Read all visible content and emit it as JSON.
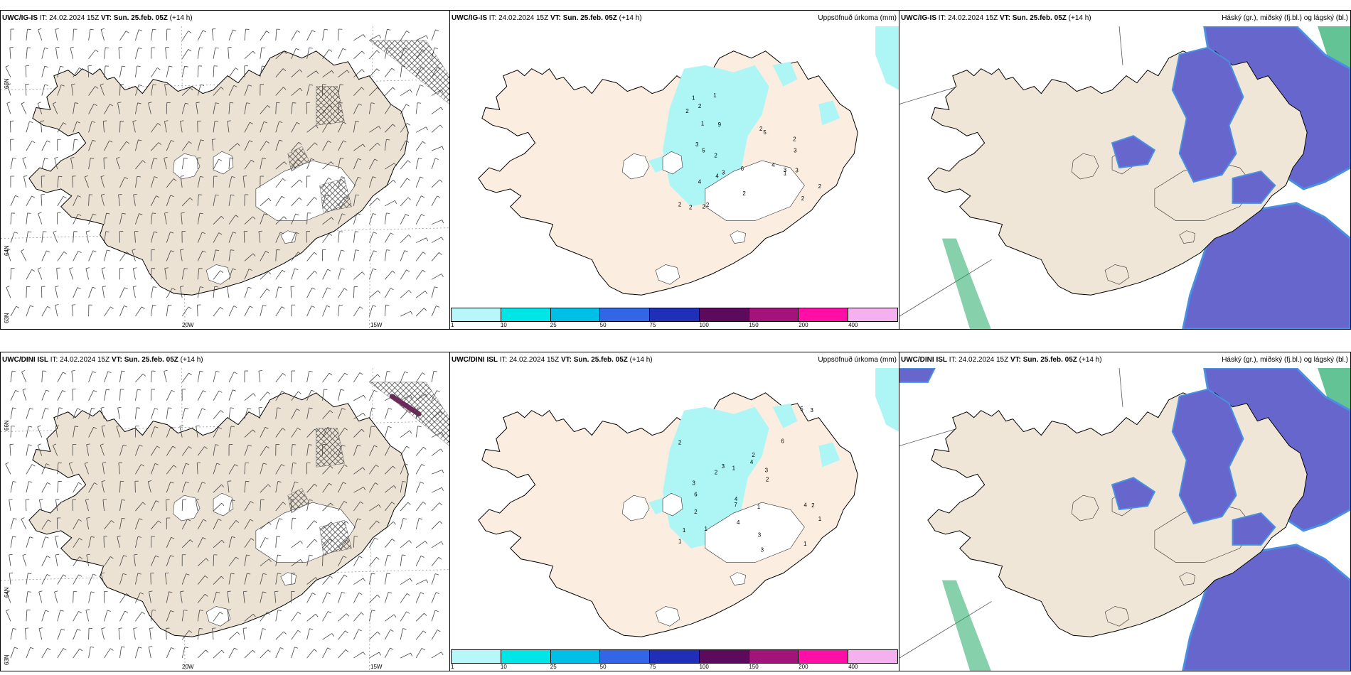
{
  "colors": {
    "land": "#f0e6d8",
    "landwind": "#ece2d4",
    "precip": "#aef5f5",
    "cloud_low": "#6666cc",
    "cloud_mid": "#4a90e2",
    "cloud_high": "#22aa66",
    "hatch": "#333333"
  },
  "rows": [
    {
      "model": "UWC/IG-IS",
      "panels": [
        {
          "model": "UWC/IG-IS",
          "it": "IT: 24.02.2024 15Z",
          "vt_label": "VT:",
          "vt": "Sun. 25.feb. 05Z",
          "lead": "(+14 h)",
          "title": ""
        },
        {
          "model": "UWC/IG-IS",
          "it": "IT: 24.02.2024 15Z",
          "vt_label": "VT:",
          "vt": "Sun. 25.feb. 05Z",
          "lead": "(+14 h)",
          "title": "Uppsöfnuð úrkoma (mm)"
        },
        {
          "model": "UWC/IG-IS",
          "it": "IT: 24.02.2024 15Z",
          "vt_label": "VT:",
          "vt": "Sun. 25.feb. 05Z",
          "lead": "(+14 h)",
          "title": "Háský (gr.), miðský (fj.bl.) og lágský (bl.)"
        }
      ]
    },
    {
      "model": "UWC/DINI ISL",
      "panels": [
        {
          "model": "UWC/DINI ISL",
          "it": "IT: 24.02.2024 15Z",
          "vt_label": "VT:",
          "vt": "Sun. 25.feb. 05Z",
          "lead": "(+14 h)",
          "title": ""
        },
        {
          "model": "UWC/DINI ISL",
          "it": "IT: 24.02.2024 15Z",
          "vt_label": "VT:",
          "vt": "Sun. 25.feb. 05Z",
          "lead": "(+14 h)",
          "title": "Uppsöfnuð úrkoma (mm)"
        },
        {
          "model": "UWC/DINI ISL",
          "it": "IT: 24.02.2024 15Z",
          "vt_label": "VT:",
          "vt": "Sun. 25.feb. 05Z",
          "lead": "(+14 h)",
          "title": "Háský (gr.), miðský (fj.bl.) og lágský (bl.)"
        }
      ]
    }
  ],
  "axis_labels": {
    "lat_66": "66N",
    "lat_64": "64N",
    "lat_63": "63N",
    "lon_20": "20W",
    "lon_15": "15W"
  },
  "colorbar": {
    "labels": [
      "1",
      "10",
      "25",
      "50",
      "75",
      "100",
      "150",
      "200",
      "400"
    ],
    "colors": [
      "#b8f7f7",
      "#00e5e5",
      "#00bfe6",
      "#3366e6",
      "#1f2fb8",
      "#5c0a5c",
      "#a3147a",
      "#ff0fa6",
      "#f5b0f0"
    ]
  },
  "precip_numbers_top": [
    "1",
    "2",
    "5",
    "3",
    "2",
    "3",
    "1",
    "1",
    "3",
    "2",
    "2",
    "2",
    "4",
    "2",
    "1",
    "2",
    "2",
    "9",
    "6",
    "5",
    "2",
    "2",
    "3",
    "4",
    "3",
    "4",
    "2",
    "2"
  ],
  "precip_numbers_bottom": [
    "4",
    "3",
    "7",
    "3",
    "4",
    "2",
    "1",
    "2",
    "3",
    "1",
    "1",
    "2",
    "1",
    "6",
    "3",
    "2",
    "6",
    "1",
    "2",
    "1",
    "3",
    "4",
    "5",
    "2",
    "3",
    "4",
    "1"
  ]
}
